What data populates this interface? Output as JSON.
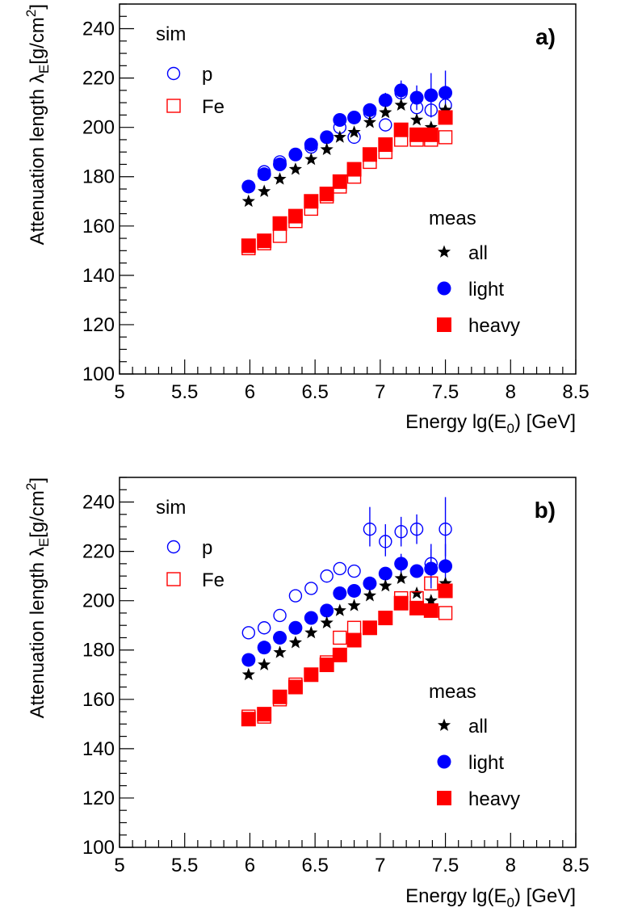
{
  "chart_data": [
    {
      "type": "scatter",
      "panel_label": "a)",
      "xlabel": "Energy lg(E",
      "xlabel_sub": "0",
      "xlabel_tail": ") [GeV]",
      "ylabel": "Attenuation length λ",
      "ylabel_sub": "E",
      "ylabel_tail": "[g/cm",
      "ylabel_sup": "2",
      "ylabel_close": "]",
      "xlim": [
        5,
        8.5
      ],
      "ylim": [
        100,
        250
      ],
      "xticks": [
        "5",
        "5.5",
        "6",
        "6.5",
        "7",
        "7.5",
        "8",
        "8.5"
      ],
      "yticks": [
        "100",
        "120",
        "140",
        "160",
        "180",
        "200",
        "220",
        "240"
      ],
      "legend_sim": {
        "title": "sim",
        "entries": [
          "p",
          "Fe"
        ]
      },
      "legend_meas": {
        "title": "meas",
        "entries": [
          "all",
          "light",
          "heavy"
        ]
      },
      "series": [
        {
          "name": "all",
          "marker": "star",
          "color": "#000000",
          "filled": true,
          "points": [
            [
              5.99,
              170
            ],
            [
              6.11,
              174
            ],
            [
              6.23,
              179
            ],
            [
              6.35,
              183
            ],
            [
              6.47,
              187
            ],
            [
              6.59,
              191
            ],
            [
              6.69,
              196
            ],
            [
              6.8,
              198
            ],
            [
              6.92,
              202
            ],
            [
              7.04,
              206
            ],
            [
              7.16,
              209
            ],
            [
              7.28,
              203
            ],
            [
              7.39,
              200
            ],
            [
              7.5,
              207
            ]
          ]
        },
        {
          "name": "light",
          "marker": "circle",
          "color": "#0000ff",
          "filled": true,
          "points": [
            [
              5.99,
              176
            ],
            [
              6.11,
              181
            ],
            [
              6.23,
              185
            ],
            [
              6.35,
              189
            ],
            [
              6.47,
              193
            ],
            [
              6.59,
              196
            ],
            [
              6.69,
              203
            ],
            [
              6.8,
              204
            ],
            [
              6.92,
              207
            ],
            [
              7.04,
              211
            ],
            [
              7.16,
              215
            ],
            [
              7.28,
              212
            ],
            [
              7.39,
              213
            ],
            [
              7.5,
              214
            ]
          ]
        },
        {
          "name": "heavy",
          "marker": "square",
          "color": "#ff0000",
          "filled": true,
          "points": [
            [
              5.99,
              152
            ],
            [
              6.11,
              154
            ],
            [
              6.23,
              161
            ],
            [
              6.35,
              164
            ],
            [
              6.47,
              170
            ],
            [
              6.59,
              173
            ],
            [
              6.69,
              178
            ],
            [
              6.8,
              183
            ],
            [
              6.92,
              189
            ],
            [
              7.04,
              193
            ],
            [
              7.16,
              199
            ],
            [
              7.28,
              197
            ],
            [
              7.39,
              197
            ],
            [
              7.5,
              204
            ]
          ]
        },
        {
          "name": "p",
          "marker": "circle",
          "color": "#0000ff",
          "filled": false,
          "points": [
            [
              5.99,
              176
            ],
            [
              6.11,
              182
            ],
            [
              6.23,
              186
            ],
            [
              6.35,
              189
            ],
            [
              6.47,
              192
            ],
            [
              6.59,
              196
            ],
            [
              6.69,
              200
            ],
            [
              6.8,
              196
            ],
            [
              6.92,
              206
            ],
            [
              7.04,
              201
            ],
            [
              7.16,
              214
            ],
            [
              7.28,
              208
            ],
            [
              7.39,
              207
            ],
            [
              7.5,
              209
            ]
          ]
        },
        {
          "name": "Fe",
          "marker": "square",
          "color": "#ff0000",
          "filled": false,
          "points": [
            [
              5.99,
              151
            ],
            [
              6.11,
              153
            ],
            [
              6.23,
              156
            ],
            [
              6.35,
              162
            ],
            [
              6.47,
              167
            ],
            [
              6.59,
              172
            ],
            [
              6.69,
              176
            ],
            [
              6.8,
              180
            ],
            [
              6.92,
              186
            ],
            [
              7.04,
              190
            ],
            [
              7.16,
              195
            ],
            [
              7.28,
              195
            ],
            [
              7.39,
              195
            ],
            [
              7.5,
              196
            ]
          ]
        }
      ],
      "errors": [
        {
          "series": "light",
          "x": 7.16,
          "lo": 211,
          "hi": 219
        },
        {
          "series": "light",
          "x": 7.28,
          "lo": 207,
          "hi": 217
        },
        {
          "series": "light",
          "x": 7.39,
          "lo": 204,
          "hi": 222
        },
        {
          "series": "light",
          "x": 7.5,
          "lo": 205,
          "hi": 223
        },
        {
          "series": "light",
          "x": 7.04,
          "lo": 208,
          "hi": 214
        }
      ]
    },
    {
      "type": "scatter",
      "panel_label": "b)",
      "xlabel": "Energy lg(E",
      "xlabel_sub": "0",
      "xlabel_tail": ") [GeV]",
      "ylabel": "Attenuation length λ",
      "ylabel_sub": "E",
      "ylabel_tail": "[g/cm",
      "ylabel_sup": "2",
      "ylabel_close": "]",
      "xlim": [
        5,
        8.5
      ],
      "ylim": [
        100,
        250
      ],
      "xticks": [
        "5",
        "5.5",
        "6",
        "6.5",
        "7",
        "7.5",
        "8",
        "8.5"
      ],
      "yticks": [
        "100",
        "120",
        "140",
        "160",
        "180",
        "200",
        "220",
        "240"
      ],
      "legend_sim": {
        "title": "sim",
        "entries": [
          "p",
          "Fe"
        ]
      },
      "legend_meas": {
        "title": "meas",
        "entries": [
          "all",
          "light",
          "heavy"
        ]
      },
      "series": [
        {
          "name": "all",
          "marker": "star",
          "color": "#000000",
          "filled": true,
          "points": [
            [
              5.99,
              170
            ],
            [
              6.11,
              174
            ],
            [
              6.23,
              179
            ],
            [
              6.35,
              183
            ],
            [
              6.47,
              187
            ],
            [
              6.59,
              191
            ],
            [
              6.69,
              196
            ],
            [
              6.8,
              198
            ],
            [
              6.92,
              202
            ],
            [
              7.04,
              206
            ],
            [
              7.16,
              209
            ],
            [
              7.28,
              203
            ],
            [
              7.39,
              200
            ],
            [
              7.5,
              207
            ]
          ]
        },
        {
          "name": "light",
          "marker": "circle",
          "color": "#0000ff",
          "filled": true,
          "points": [
            [
              5.99,
              176
            ],
            [
              6.11,
              181
            ],
            [
              6.23,
              185
            ],
            [
              6.35,
              189
            ],
            [
              6.47,
              193
            ],
            [
              6.59,
              196
            ],
            [
              6.69,
              203
            ],
            [
              6.8,
              204
            ],
            [
              6.92,
              207
            ],
            [
              7.04,
              211
            ],
            [
              7.16,
              215
            ],
            [
              7.28,
              212
            ],
            [
              7.39,
              213
            ],
            [
              7.5,
              214
            ]
          ]
        },
        {
          "name": "heavy",
          "marker": "square",
          "color": "#ff0000",
          "filled": true,
          "points": [
            [
              5.99,
              152
            ],
            [
              6.11,
              154
            ],
            [
              6.23,
              161
            ],
            [
              6.35,
              165
            ],
            [
              6.47,
              170
            ],
            [
              6.59,
              174
            ],
            [
              6.69,
              178
            ],
            [
              6.8,
              184
            ],
            [
              6.92,
              189
            ],
            [
              7.04,
              193
            ],
            [
              7.16,
              199
            ],
            [
              7.28,
              197
            ],
            [
              7.39,
              196
            ],
            [
              7.5,
              204
            ]
          ]
        },
        {
          "name": "p",
          "marker": "circle",
          "color": "#0000ff",
          "filled": false,
          "points": [
            [
              5.99,
              187
            ],
            [
              6.11,
              189
            ],
            [
              6.23,
              194
            ],
            [
              6.35,
              202
            ],
            [
              6.47,
              205
            ],
            [
              6.59,
              210
            ],
            [
              6.69,
              213
            ],
            [
              6.8,
              212
            ],
            [
              6.92,
              229
            ],
            [
              7.04,
              224
            ],
            [
              7.16,
              228
            ],
            [
              7.28,
              229
            ],
            [
              7.39,
              215
            ],
            [
              7.5,
              229
            ]
          ]
        },
        {
          "name": "Fe",
          "marker": "square",
          "color": "#ff0000",
          "filled": false,
          "points": [
            [
              5.99,
              153
            ],
            [
              6.11,
              153
            ],
            [
              6.23,
              160
            ],
            [
              6.35,
              166
            ],
            [
              6.47,
              170
            ],
            [
              6.59,
              175
            ],
            [
              6.69,
              185
            ],
            [
              6.8,
              189
            ],
            [
              6.92,
              189
            ],
            [
              7.04,
              193
            ],
            [
              7.16,
              201
            ],
            [
              7.28,
              201
            ],
            [
              7.39,
              207
            ],
            [
              7.5,
              195
            ]
          ]
        }
      ],
      "errors": [
        {
          "series": "p",
          "x": 6.92,
          "lo": 222,
          "hi": 238
        },
        {
          "series": "p",
          "x": 7.04,
          "lo": 218,
          "hi": 231
        },
        {
          "series": "p",
          "x": 7.16,
          "lo": 222,
          "hi": 234
        },
        {
          "series": "p",
          "x": 7.28,
          "lo": 223,
          "hi": 235
        },
        {
          "series": "p",
          "x": 7.39,
          "lo": 207,
          "hi": 223
        },
        {
          "series": "p",
          "x": 7.5,
          "lo": 218,
          "hi": 242
        },
        {
          "series": "light",
          "x": 7.16,
          "lo": 211,
          "hi": 219
        },
        {
          "series": "light",
          "x": 7.39,
          "lo": 205,
          "hi": 221
        },
        {
          "series": "light",
          "x": 7.5,
          "lo": 205,
          "hi": 223
        }
      ]
    }
  ]
}
